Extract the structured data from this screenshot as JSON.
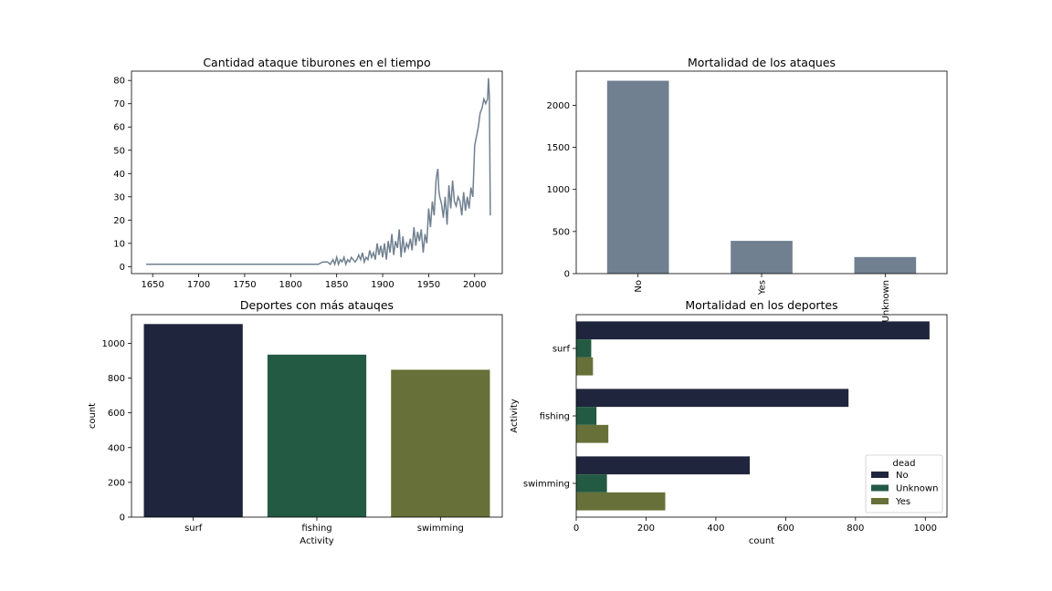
{
  "colors": {
    "line": "#708090",
    "bar": "#708090",
    "navy": "#1f253c",
    "green": "#235a43",
    "olive": "#677038"
  },
  "chart_data": [
    {
      "type": "line",
      "title": "Cantidad ataque tiburones en el tiempo",
      "xlabel": "",
      "ylabel": "",
      "xlim": [
        1627,
        2030
      ],
      "ylim": [
        -3,
        84
      ],
      "xticks": [
        1650,
        1700,
        1750,
        1800,
        1850,
        1900,
        1950,
        2000
      ],
      "yticks": [
        0,
        10,
        20,
        30,
        40,
        50,
        60,
        70,
        80
      ],
      "x": [
        1643,
        1700,
        1760,
        1830,
        1835,
        1840,
        1843,
        1846,
        1848,
        1850,
        1852,
        1854,
        1856,
        1858,
        1860,
        1862,
        1864,
        1866,
        1868,
        1870,
        1872,
        1874,
        1876,
        1878,
        1880,
        1882,
        1884,
        1886,
        1888,
        1890,
        1892,
        1894,
        1896,
        1898,
        1900,
        1902,
        1904,
        1906,
        1908,
        1910,
        1912,
        1914,
        1916,
        1918,
        1920,
        1922,
        1924,
        1926,
        1928,
        1930,
        1932,
        1934,
        1936,
        1938,
        1940,
        1942,
        1944,
        1946,
        1948,
        1950,
        1952,
        1954,
        1956,
        1958,
        1959,
        1960,
        1961,
        1962,
        1964,
        1966,
        1968,
        1970,
        1972,
        1974,
        1976,
        1978,
        1980,
        1982,
        1984,
        1986,
        1988,
        1990,
        1992,
        1994,
        1996,
        1998,
        2000,
        2002,
        2004,
        2006,
        2008,
        2010,
        2012,
        2014,
        2015,
        2016,
        2017
      ],
      "values": [
        1,
        1,
        1,
        1,
        2,
        2,
        1,
        3,
        1,
        4,
        1,
        3,
        2,
        4,
        1,
        3,
        2,
        4,
        3,
        2,
        3,
        5,
        3,
        6,
        2,
        4,
        3,
        7,
        4,
        6,
        3,
        10,
        5,
        9,
        4,
        10,
        3,
        11,
        6,
        14,
        5,
        11,
        8,
        16,
        4,
        13,
        6,
        10,
        8,
        12,
        7,
        17,
        9,
        15,
        11,
        16,
        6,
        14,
        10,
        25,
        17,
        28,
        22,
        37,
        40,
        42,
        33,
        30,
        27,
        21,
        30,
        18,
        35,
        25,
        37,
        28,
        26,
        30,
        28,
        22,
        32,
        24,
        30,
        25,
        34,
        30,
        52,
        56,
        60,
        66,
        68,
        72,
        70,
        72,
        81,
        73,
        22
      ]
    },
    {
      "type": "bar",
      "title": "Mortalidad de los ataques",
      "categories": [
        "No",
        "Yes",
        "Unknown"
      ],
      "values": [
        2291,
        389,
        197
      ],
      "ylim": [
        0,
        2405
      ],
      "yticks": [
        0,
        500,
        1000,
        1500,
        2000
      ]
    },
    {
      "type": "bar",
      "title": "Deportes con más atauqes",
      "categories": [
        "surf",
        "fishing",
        "swimming"
      ],
      "values": [
        1111,
        935,
        848
      ],
      "xlabel": "Activity",
      "ylabel": "count",
      "ylim": [
        0,
        1165
      ],
      "yticks": [
        0,
        200,
        400,
        600,
        800,
        1000
      ]
    },
    {
      "type": "bar",
      "orientation": "horizontal",
      "title": "Mortalidad en los deportes",
      "categories": [
        "surf",
        "fishing",
        "swimming"
      ],
      "series": [
        {
          "name": "No",
          "values": [
            1012,
            780,
            497
          ]
        },
        {
          "name": "Unknown",
          "values": [
            43,
            58,
            88
          ]
        },
        {
          "name": "Yes",
          "values": [
            48,
            92,
            255
          ]
        }
      ],
      "xlabel": "count",
      "ylabel": "Activity",
      "xlim": [
        0,
        1062
      ],
      "xticks": [
        0,
        200,
        400,
        600,
        800,
        1000
      ],
      "legend": {
        "title": "dead",
        "placement": "lower-right"
      }
    }
  ]
}
